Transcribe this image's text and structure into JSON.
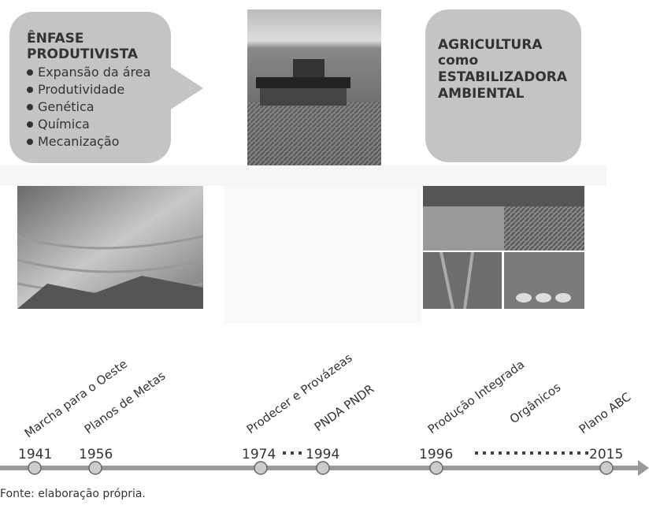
{
  "left_box": {
    "title_lines": [
      "ÊNFASE",
      "PRODUTIVISTA"
    ],
    "bullets": [
      "Expansão da área",
      "Produtividade",
      "Genética",
      "Química",
      "Mecanização"
    ]
  },
  "right_box": {
    "lines": [
      "AGRICULTURA",
      "como",
      "ESTABILIZADORA",
      "AMBIENTAL"
    ]
  },
  "timeline": {
    "events": [
      "Marcha para o Oeste",
      "Planos de Metas",
      "Prodecer e Provázeas",
      "PNDA PNDR",
      "Produção Integrada",
      "Orgânicos",
      "Plano ABC"
    ],
    "years": [
      "1941",
      "1956",
      "1974",
      "1994",
      "1996",
      "2015"
    ]
  },
  "source": "Fonte: elaboração própria."
}
